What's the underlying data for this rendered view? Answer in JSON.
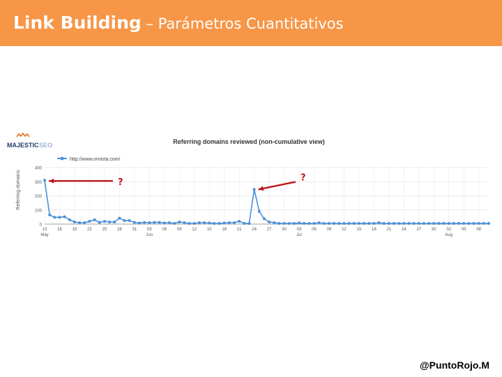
{
  "header": {
    "title_bold": "Link Building",
    "title_separator": " – ",
    "title_sub": "Parámetros Cuantitativos",
    "background_color": "#f79646"
  },
  "logo": {
    "main": "MAJESTIC",
    "suffix": "SEO"
  },
  "annotations": {
    "left_mark": "?",
    "right_mark": "?",
    "arrow_color": "#c0171c"
  },
  "footer": {
    "handle": "@PuntoRojo.M"
  },
  "chart_data": {
    "type": "line",
    "title": "Referring domains reviewed (non-cumulative view)",
    "ylabel": "Referring domains",
    "legend": {
      "label": "http://www.ornista.com/",
      "placement": "top-left"
    },
    "ylim": [
      0,
      400
    ],
    "yticks": [
      0,
      100,
      200,
      300,
      400
    ],
    "grid": true,
    "series_color": "#4a90d9",
    "x_ticks": [
      {
        "day": "13",
        "month": "May"
      },
      {
        "day": "16",
        "month": ""
      },
      {
        "day": "19",
        "month": ""
      },
      {
        "day": "22",
        "month": ""
      },
      {
        "day": "25",
        "month": ""
      },
      {
        "day": "28",
        "month": ""
      },
      {
        "day": "31",
        "month": ""
      },
      {
        "day": "03",
        "month": "Jun"
      },
      {
        "day": "06",
        "month": ""
      },
      {
        "day": "09",
        "month": ""
      },
      {
        "day": "12",
        "month": ""
      },
      {
        "day": "15",
        "month": ""
      },
      {
        "day": "18",
        "month": ""
      },
      {
        "day": "21",
        "month": ""
      },
      {
        "day": "24",
        "month": ""
      },
      {
        "day": "27",
        "month": ""
      },
      {
        "day": "30",
        "month": ""
      },
      {
        "day": "03",
        "month": "Jul"
      },
      {
        "day": "06",
        "month": ""
      },
      {
        "day": "09",
        "month": ""
      },
      {
        "day": "12",
        "month": ""
      },
      {
        "day": "15",
        "month": ""
      },
      {
        "day": "18",
        "month": ""
      },
      {
        "day": "21",
        "month": ""
      },
      {
        "day": "24",
        "month": ""
      },
      {
        "day": "27",
        "month": ""
      },
      {
        "day": "30",
        "month": ""
      },
      {
        "day": "02",
        "month": "Aug"
      },
      {
        "day": "05",
        "month": ""
      },
      {
        "day": "08",
        "month": ""
      }
    ],
    "x_day_index": [
      0,
      1,
      2,
      3,
      4,
      5,
      6,
      7,
      8,
      9,
      10,
      11,
      12,
      13,
      14,
      15,
      16,
      17,
      18,
      19,
      20,
      21,
      22,
      23,
      24,
      25,
      26,
      27,
      28,
      29,
      30,
      31,
      32,
      33,
      34,
      35,
      36,
      37,
      38,
      39,
      40,
      41,
      42,
      43,
      44,
      45,
      46,
      47,
      48,
      49,
      50,
      51,
      52,
      53,
      54,
      55,
      56,
      57,
      58,
      59,
      60,
      61,
      62,
      63,
      64,
      65,
      66,
      67,
      68,
      69,
      70,
      71,
      72,
      73,
      74,
      75,
      76,
      77,
      78,
      79,
      80,
      81,
      82,
      83,
      84,
      85,
      86,
      87,
      88,
      89
    ],
    "values": [
      310,
      65,
      48,
      48,
      52,
      30,
      15,
      10,
      10,
      20,
      30,
      12,
      20,
      15,
      15,
      42,
      25,
      25,
      12,
      8,
      12,
      10,
      12,
      12,
      8,
      10,
      5,
      15,
      10,
      5,
      5,
      10,
      10,
      8,
      5,
      5,
      8,
      10,
      10,
      20,
      5,
      5,
      245,
      90,
      38,
      15,
      10,
      5,
      5,
      5,
      5,
      8,
      5,
      5,
      5,
      10,
      5,
      5,
      5,
      5,
      5,
      5,
      5,
      5,
      5,
      5,
      5,
      10,
      5,
      5,
      5,
      5,
      5,
      5,
      5,
      5,
      5,
      5,
      5,
      5,
      5,
      5,
      5,
      5,
      5,
      5,
      5,
      5,
      5,
      5
    ]
  }
}
